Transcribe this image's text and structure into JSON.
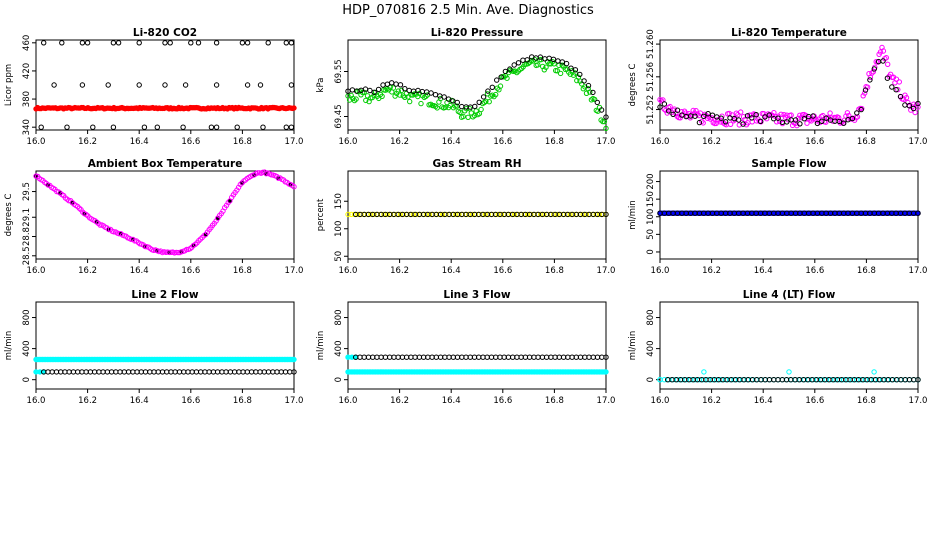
{
  "page_title": "HDP_070816  2.5 Min. Ave. Diagnostics",
  "colors": {
    "black": "#000000",
    "red": "#ff0000",
    "green": "#00cc00",
    "magenta": "#ff00ff",
    "yellow": "#ffff00",
    "cyan": "#00ffff",
    "blue": "#0000ff"
  },
  "chart_data": [
    {
      "type": "scatter",
      "title": "Li-820 CO2",
      "ylabel": "Licor ppm",
      "xlim": [
        16.0,
        17.0
      ],
      "ylim": [
        336,
        464
      ],
      "xticks": [
        16.0,
        16.2,
        16.4,
        16.6,
        16.8,
        17.0
      ],
      "xtick_labels": [
        "16.0",
        "16.2",
        "16.4",
        "16.6",
        "16.8",
        "17.0"
      ],
      "yticks": [
        340,
        380,
        420,
        460
      ],
      "ytick_labels": [
        "340",
        "380",
        "420",
        "460"
      ],
      "series": [
        {
          "name": "red points",
          "color": "red",
          "kind": "filled_band",
          "x_start": 16.0,
          "x_end": 17.0,
          "n": 160,
          "y": 367,
          "spread": 2
        },
        {
          "name": "black points",
          "color": "black",
          "kind": "levels_points",
          "groups": [
            {
              "y": 460,
              "x": [
                16.03,
                16.1,
                16.18,
                16.2,
                16.3,
                16.32,
                16.4,
                16.5,
                16.52,
                16.6,
                16.63,
                16.7,
                16.8,
                16.82,
                16.9,
                16.97,
                16.99
              ]
            },
            {
              "y": 400,
              "x": [
                16.07,
                16.18,
                16.28,
                16.4,
                16.5,
                16.58,
                16.7,
                16.82,
                16.87,
                16.99
              ]
            },
            {
              "y": 340,
              "x": [
                16.02,
                16.12,
                16.22,
                16.3,
                16.42,
                16.47,
                16.57,
                16.68,
                16.7,
                16.78,
                16.88,
                16.97,
                16.99
              ]
            }
          ]
        }
      ]
    },
    {
      "type": "scatter",
      "title": "Li-820 Pressure",
      "ylabel": "kPa",
      "xlim": [
        16.0,
        17.0
      ],
      "ylim": [
        69.42,
        69.62
      ],
      "xticks": [
        16.0,
        16.2,
        16.4,
        16.6,
        16.8,
        17.0
      ],
      "xtick_labels": [
        "16.0",
        "16.2",
        "16.4",
        "16.6",
        "16.8",
        "17.0"
      ],
      "yticks": [
        69.45,
        69.55
      ],
      "ytick_labels": [
        "69.45",
        "69.55"
      ],
      "series": [
        {
          "name": "green band",
          "color": "green",
          "kind": "ring_curve",
          "offset": -0.015,
          "jitter": 0.012,
          "n": 160,
          "x": [
            16.0,
            16.05,
            16.1,
            16.15,
            16.2,
            16.25,
            16.3,
            16.35,
            16.4,
            16.45,
            16.5,
            16.55,
            16.6,
            16.65,
            16.7,
            16.75,
            16.8,
            16.85,
            16.9,
            16.95,
            17.0
          ],
          "y": [
            69.505,
            69.51,
            69.505,
            69.525,
            69.52,
            69.505,
            69.505,
            69.495,
            69.49,
            69.47,
            69.475,
            69.51,
            69.545,
            69.565,
            69.58,
            69.58,
            69.575,
            69.565,
            69.545,
            69.5,
            69.45
          ]
        },
        {
          "name": "black curve",
          "color": "black",
          "kind": "ring_curve",
          "offset": 0,
          "jitter": 0.003,
          "n": 60,
          "x": [
            16.0,
            16.05,
            16.1,
            16.15,
            16.2,
            16.25,
            16.3,
            16.35,
            16.4,
            16.45,
            16.5,
            16.55,
            16.6,
            16.65,
            16.7,
            16.75,
            16.8,
            16.85,
            16.9,
            16.95,
            17.0
          ],
          "y": [
            69.505,
            69.51,
            69.505,
            69.525,
            69.52,
            69.505,
            69.505,
            69.495,
            69.49,
            69.47,
            69.475,
            69.51,
            69.545,
            69.565,
            69.58,
            69.58,
            69.575,
            69.565,
            69.545,
            69.5,
            69.45
          ]
        }
      ]
    },
    {
      "type": "scatter",
      "title": "Li-820 Temperature",
      "ylabel": "degrees C",
      "xlim": [
        16.0,
        17.0
      ],
      "ylim": [
        51.2495,
        51.2605
      ],
      "xticks": [
        16.0,
        16.2,
        16.4,
        16.6,
        16.8,
        17.0
      ],
      "xtick_labels": [
        "16.0",
        "16.2",
        "16.4",
        "16.6",
        "16.8",
        "17.0"
      ],
      "yticks": [
        51.252,
        51.256,
        51.26
      ],
      "ytick_labels": [
        "51.252",
        "51.256",
        "51.260"
      ],
      "series": [
        {
          "name": "magenta points",
          "color": "magenta",
          "kind": "ring_curve",
          "offset": 0,
          "jitter": 0.0008,
          "n": 180,
          "x": [
            16.0,
            16.05,
            16.1,
            16.2,
            16.3,
            16.4,
            16.5,
            16.6,
            16.7,
            16.75,
            16.78,
            16.8,
            16.83,
            16.86,
            16.88,
            16.9,
            16.93,
            16.96,
            17.0
          ],
          "y": [
            51.2525,
            51.2522,
            51.2512,
            51.251,
            51.2509,
            51.2509,
            51.2508,
            51.2508,
            51.2509,
            51.2511,
            51.2525,
            51.255,
            51.2575,
            51.2592,
            51.2575,
            51.2555,
            51.2545,
            51.2525,
            51.252
          ]
        },
        {
          "name": "black points",
          "color": "black",
          "kind": "ring_curve",
          "offset": 0,
          "jitter": 0.0006,
          "n": 60,
          "x": [
            16.0,
            16.05,
            16.1,
            16.2,
            16.3,
            16.4,
            16.5,
            16.6,
            16.7,
            16.75,
            16.78,
            16.8,
            16.83,
            16.86,
            16.88,
            16.9,
            16.93,
            16.96,
            17.0
          ],
          "y": [
            51.2522,
            51.252,
            51.251,
            51.2509,
            51.2508,
            51.2508,
            51.2508,
            51.2508,
            51.2508,
            51.251,
            51.252,
            51.2548,
            51.2568,
            51.2578,
            51.256,
            51.2542,
            51.2535,
            51.2522,
            51.253
          ]
        }
      ]
    },
    {
      "type": "scatter",
      "title": "Ambient Box Temperature",
      "ylabel": "degrees C",
      "xlim": [
        16.0,
        17.0
      ],
      "ylim": [
        28.45,
        29.82
      ],
      "xticks": [
        16.0,
        16.2,
        16.4,
        16.6,
        16.8,
        17.0
      ],
      "xtick_labels": [
        "16.0",
        "16.2",
        "16.4",
        "16.6",
        "16.8",
        "17.0"
      ],
      "yticks": [
        28.5,
        28.8,
        29.1,
        29.5
      ],
      "ytick_labels": [
        "28.5",
        "28.8",
        "29.1",
        "29.5"
      ],
      "series": [
        {
          "name": "magenta points",
          "color": "magenta",
          "kind": "ring_curve_filled",
          "fill_color": "black",
          "offset": 0,
          "jitter": 0.01,
          "n": 150,
          "x": [
            16.0,
            16.05,
            16.1,
            16.15,
            16.2,
            16.25,
            16.3,
            16.35,
            16.4,
            16.45,
            16.5,
            16.55,
            16.6,
            16.65,
            16.7,
            16.75,
            16.8,
            16.85,
            16.88,
            16.9,
            16.95,
            17.0
          ],
          "y": [
            29.75,
            29.6,
            29.45,
            29.3,
            29.12,
            28.98,
            28.88,
            28.8,
            28.7,
            28.6,
            28.55,
            28.55,
            28.62,
            28.8,
            29.05,
            29.35,
            29.65,
            29.78,
            29.8,
            29.78,
            29.7,
            29.58
          ]
        }
      ]
    },
    {
      "type": "scatter",
      "title": "Gas Stream RH",
      "ylabel": "percent",
      "xlim": [
        16.0,
        17.0
      ],
      "ylim": [
        45,
        205
      ],
      "xticks": [
        16.0,
        16.2,
        16.4,
        16.6,
        16.8,
        17.0
      ],
      "xtick_labels": [
        "16.0",
        "16.2",
        "16.4",
        "16.6",
        "16.8",
        "17.0"
      ],
      "yticks": [
        50,
        100,
        150
      ],
      "ytick_labels": [
        "50",
        "100",
        "150"
      ],
      "series": [
        {
          "name": "yellow points",
          "color": "yellow",
          "kind": "flat_line",
          "x_start": 16.0,
          "x_end": 17.0,
          "n": 80,
          "y": 126
        },
        {
          "name": "black points",
          "color": "black",
          "kind": "flat_line",
          "x_start": 16.03,
          "x_end": 17.0,
          "n": 60,
          "y": 126
        }
      ]
    },
    {
      "type": "scatter",
      "title": "Sample Flow",
      "ylabel": "ml/min",
      "xlim": [
        16.0,
        17.0
      ],
      "ylim": [
        -20,
        230
      ],
      "xticks": [
        16.0,
        16.2,
        16.4,
        16.6,
        16.8,
        17.0
      ],
      "xtick_labels": [
        "16.0",
        "16.2",
        "16.4",
        "16.6",
        "16.8",
        "17.0"
      ],
      "yticks": [
        0,
        50,
        100,
        150,
        200
      ],
      "ytick_labels": [
        "0",
        "50",
        "100",
        "150",
        "200"
      ],
      "series": [
        {
          "name": "blue points",
          "color": "blue",
          "kind": "flat_line_filled",
          "x_start": 16.0,
          "x_end": 17.0,
          "n": 160,
          "y": 110
        },
        {
          "name": "black points",
          "color": "black",
          "kind": "flat_line",
          "x_start": 16.0,
          "x_end": 17.0,
          "n": 60,
          "y": 110
        }
      ]
    },
    {
      "type": "scatter",
      "title": "Line 2 Flow",
      "ylabel": "ml/min",
      "xlim": [
        16.0,
        17.0
      ],
      "ylim": [
        -120,
        1000
      ],
      "xticks": [
        16.0,
        16.2,
        16.4,
        16.6,
        16.8,
        17.0
      ],
      "xtick_labels": [
        "16.0",
        "16.2",
        "16.4",
        "16.6",
        "16.8",
        "17.0"
      ],
      "yticks": [
        0,
        400,
        800
      ],
      "ytick_labels": [
        "0",
        "400",
        "800"
      ],
      "series": [
        {
          "name": "cyan upper points",
          "color": "cyan",
          "kind": "flat_line_filled",
          "x_start": 16.0,
          "x_end": 17.0,
          "n": 160,
          "y": 260
        },
        {
          "name": "cyan lower points",
          "color": "cyan",
          "kind": "flat_line_filled",
          "x_start": 16.0,
          "x_end": 16.03,
          "n": 3,
          "y": 100
        },
        {
          "name": "black points",
          "color": "black",
          "kind": "flat_line",
          "x_start": 16.03,
          "x_end": 17.0,
          "n": 60,
          "y": 100
        }
      ]
    },
    {
      "type": "scatter",
      "title": "Line 3 Flow",
      "ylabel": "ml/min",
      "xlim": [
        16.0,
        17.0
      ],
      "ylim": [
        -120,
        1000
      ],
      "xticks": [
        16.0,
        16.2,
        16.4,
        16.6,
        16.8,
        17.0
      ],
      "xtick_labels": [
        "16.0",
        "16.2",
        "16.4",
        "16.6",
        "16.8",
        "17.0"
      ],
      "yticks": [
        0,
        400,
        800
      ],
      "ytick_labels": [
        "0",
        "400",
        "800"
      ],
      "series": [
        {
          "name": "cyan lower points",
          "color": "cyan",
          "kind": "flat_line_filled",
          "x_start": 16.0,
          "x_end": 17.0,
          "n": 160,
          "y": 100
        },
        {
          "name": "cyan upper points",
          "color": "cyan",
          "kind": "flat_line_filled",
          "x_start": 16.0,
          "x_end": 16.03,
          "n": 3,
          "y": 290
        },
        {
          "name": "black points",
          "color": "black",
          "kind": "flat_line",
          "x_start": 16.03,
          "x_end": 17.0,
          "n": 60,
          "y": 290
        }
      ]
    },
    {
      "type": "scatter",
      "title": "Line 4 (LT) Flow",
      "ylabel": "ml/min",
      "xlim": [
        16.0,
        17.0
      ],
      "ylim": [
        -120,
        1000
      ],
      "xticks": [
        16.0,
        16.2,
        16.4,
        16.6,
        16.8,
        17.0
      ],
      "xtick_labels": [
        "16.0",
        "16.2",
        "16.4",
        "16.6",
        "16.8",
        "17.0"
      ],
      "yticks": [
        0,
        400,
        800
      ],
      "ytick_labels": [
        "0",
        "400",
        "800"
      ],
      "series": [
        {
          "name": "cyan points",
          "color": "cyan",
          "kind": "flat_line",
          "x_start": 16.0,
          "x_end": 17.0,
          "n": 60,
          "y": 0
        },
        {
          "name": "cyan spikes",
          "color": "cyan",
          "kind": "points",
          "x": [
            16.0,
            16.17,
            16.5,
            16.83
          ],
          "y": [
            0,
            100,
            100,
            100
          ]
        },
        {
          "name": "black points",
          "color": "black",
          "kind": "flat_line",
          "x_start": 16.03,
          "x_end": 17.0,
          "n": 60,
          "y": 0
        }
      ]
    }
  ]
}
